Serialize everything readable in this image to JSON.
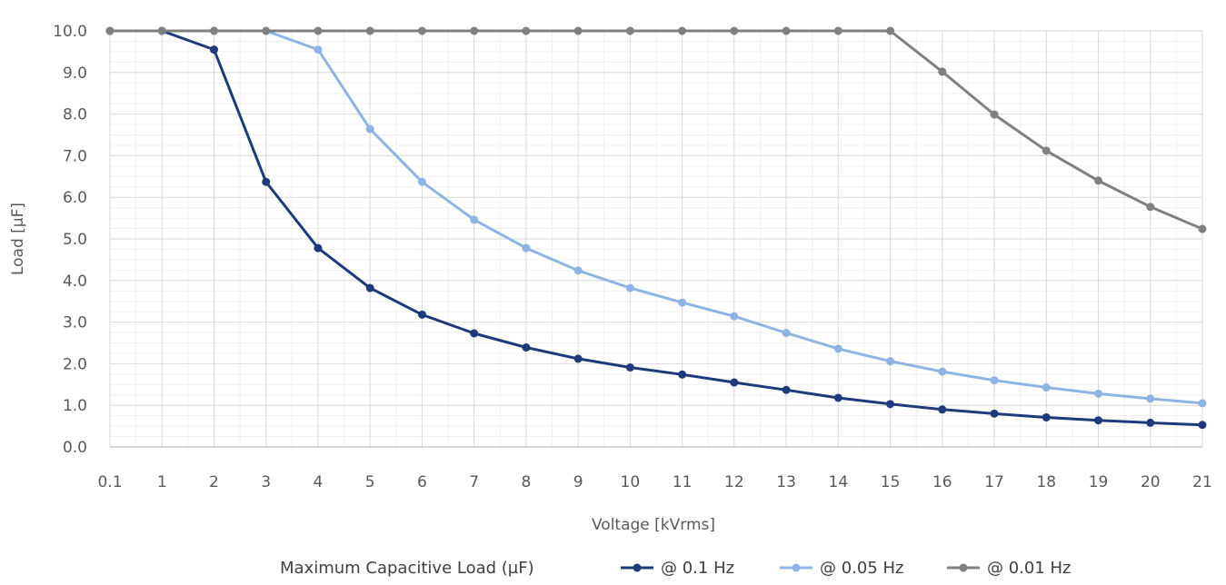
{
  "chart_data": {
    "type": "line",
    "title": "",
    "xlabel": "Voltage [kVrms]",
    "ylabel": "Load [µF]",
    "categories": [
      "0.1",
      "1",
      "2",
      "3",
      "4",
      "5",
      "6",
      "7",
      "8",
      "9",
      "10",
      "11",
      "12",
      "13",
      "14",
      "15",
      "16",
      "17",
      "18",
      "19",
      "20",
      "21"
    ],
    "ylim": [
      0,
      10
    ],
    "yticks": [
      "0.0",
      "1.0",
      "2.0",
      "3.0",
      "4.0",
      "5.0",
      "6.0",
      "7.0",
      "8.0",
      "9.0",
      "10.0"
    ],
    "grid": true,
    "legend_position": "bottom",
    "legend_title": "Maximum Capacitive Load (µF)",
    "series": [
      {
        "name": "@ 0.1 Hz",
        "color": "#1f3a7a",
        "values": [
          10.0,
          10.0,
          9.55,
          6.37,
          4.78,
          3.82,
          3.18,
          2.73,
          2.39,
          2.12,
          1.91,
          1.74,
          1.55,
          1.37,
          1.18,
          1.03,
          0.9,
          0.8,
          0.71,
          0.64,
          0.58,
          0.53
        ]
      },
      {
        "name": "@ 0.05 Hz",
        "color": "#8fb4e3",
        "values": [
          10.0,
          10.0,
          10.0,
          10.0,
          9.55,
          7.64,
          6.37,
          5.46,
          4.78,
          4.24,
          3.82,
          3.47,
          3.14,
          2.74,
          2.36,
          2.06,
          1.81,
          1.6,
          1.43,
          1.28,
          1.16,
          1.05
        ]
      },
      {
        "name": "@ 0.01 Hz",
        "color": "#808080",
        "values": [
          10.0,
          10.0,
          10.0,
          10.0,
          10.0,
          10.0,
          10.0,
          10.0,
          10.0,
          10.0,
          10.0,
          10.0,
          10.0,
          10.0,
          10.0,
          10.0,
          9.02,
          7.99,
          7.12,
          6.4,
          5.77,
          5.24
        ]
      }
    ]
  }
}
